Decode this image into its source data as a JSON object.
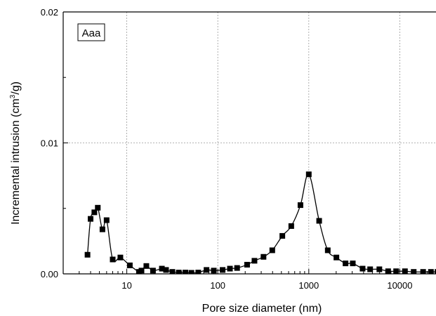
{
  "chart_data": {
    "type": "scatter",
    "annotation": "Aaa",
    "xlabel": "Pore size diameter (nm)",
    "ylabel_main": "Incremental intrusion (cm",
    "ylabel_sup": "3",
    "ylabel_tail": "/g)",
    "x_scale": "log",
    "xlim": [
      2,
      25000
    ],
    "ylim": [
      0,
      0.02
    ],
    "x_ticks": [
      10,
      100,
      1000,
      10000
    ],
    "x_tick_labels": [
      "10",
      "100",
      "1000",
      "10000"
    ],
    "y_ticks": [
      0,
      0.01,
      0.02
    ],
    "y_tick_labels": [
      "0.00",
      "0.01",
      "0.02"
    ],
    "grid": true,
    "series": [
      {
        "marker": "square",
        "color": "#000000",
        "smooth_line": true,
        "points": [
          [
            3.7,
            0.00146
          ],
          [
            4.0,
            0.0042
          ],
          [
            4.4,
            0.0047
          ],
          [
            4.8,
            0.00505
          ],
          [
            5.4,
            0.0034
          ],
          [
            6.0,
            0.0041
          ],
          [
            7.0,
            0.0011
          ],
          [
            8.5,
            0.00125
          ],
          [
            10.8,
            0.00065
          ],
          [
            13.6,
            0.00015
          ],
          [
            14.5,
            0.00025
          ],
          [
            16.4,
            0.0006
          ],
          [
            19.4,
            0.00025
          ],
          [
            24.3,
            0.0004
          ],
          [
            27.0,
            0.0003
          ],
          [
            31.7,
            0.00015
          ],
          [
            37.3,
            0.0001
          ],
          [
            44.0,
            0.0001
          ],
          [
            51.3,
            8e-05
          ],
          [
            61.0,
            0.0001
          ],
          [
            75.2,
            0.0003
          ],
          [
            90.4,
            0.00025
          ],
          [
            113,
            0.0003
          ],
          [
            136,
            0.0004
          ],
          [
            163,
            0.00045
          ],
          [
            210,
            0.0007
          ],
          [
            253,
            0.001
          ],
          [
            318,
            0.0013
          ],
          [
            397,
            0.0018
          ],
          [
            512,
            0.0029
          ],
          [
            642,
            0.00365
          ],
          [
            810,
            0.00525
          ],
          [
            1000,
            0.0076
          ],
          [
            1300,
            0.00405
          ],
          [
            1616,
            0.0018
          ],
          [
            2011,
            0.00125
          ],
          [
            2534,
            0.0008
          ],
          [
            3045,
            0.0008
          ],
          [
            3902,
            0.0004
          ],
          [
            4723,
            0.00035
          ],
          [
            5964,
            0.00035
          ],
          [
            7447,
            0.0002
          ],
          [
            9117,
            0.0002
          ],
          [
            11397,
            0.0002
          ],
          [
            14217,
            0.00015
          ],
          [
            18045,
            0.00015
          ],
          [
            22000,
            0.00015
          ],
          [
            26000,
            0.00015
          ]
        ]
      }
    ]
  }
}
